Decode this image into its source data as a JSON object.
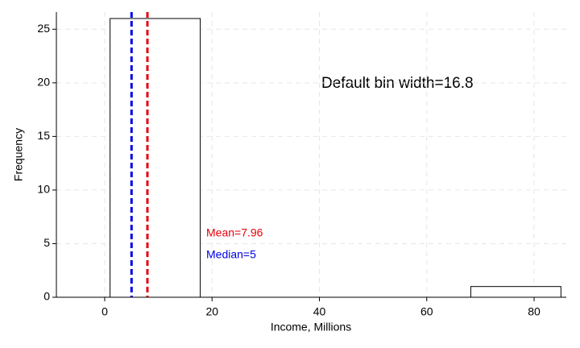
{
  "chart_data": {
    "type": "histogram",
    "xlabel": "Income, Millions",
    "ylabel": "Frequency",
    "bins": [
      1,
      17.8,
      34.6,
      51.4,
      68.2,
      85
    ],
    "values": [
      26,
      0,
      0,
      0,
      1
    ],
    "bar_fill": "#ffffff",
    "bar_edge": "#000000",
    "xlim": [
      -9,
      86
    ],
    "xticks": [
      0,
      20,
      40,
      60,
      80
    ],
    "ylim": [
      0,
      26.6
    ],
    "yticks": [
      0,
      5,
      10,
      15,
      20,
      25
    ],
    "grid": true,
    "vlines": [
      {
        "name": "Mean=7.96",
        "value": 7.96,
        "color": "#e8000b"
      },
      {
        "name": "Median=5",
        "value": 5,
        "color": "#0000e6"
      }
    ],
    "annotation": "Default bin width=16.8"
  }
}
